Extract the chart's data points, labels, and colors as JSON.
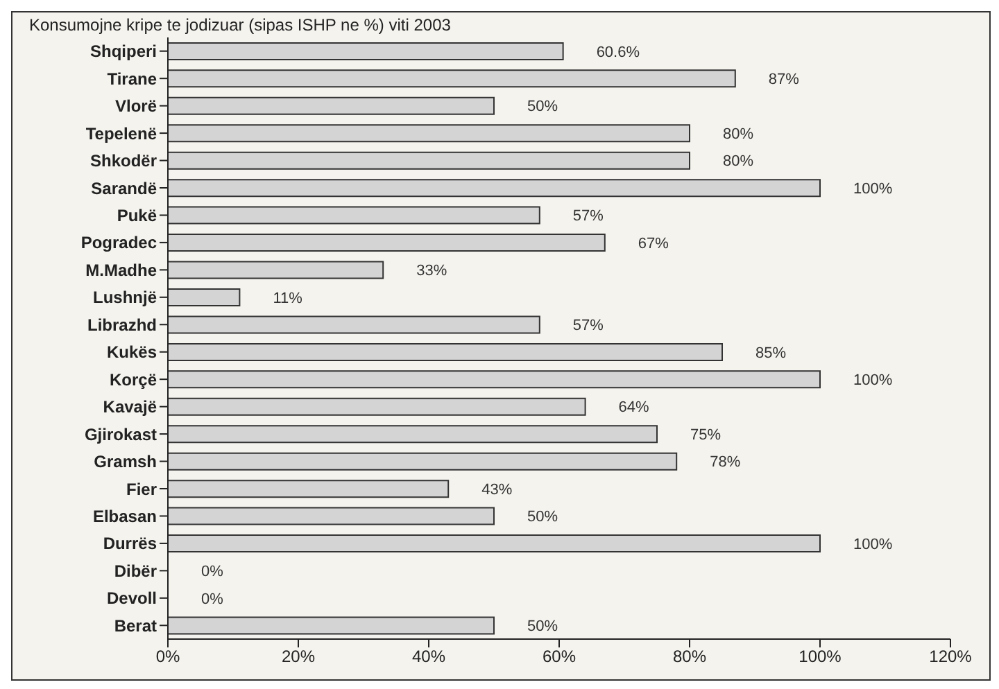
{
  "chart_data": {
    "type": "bar",
    "orientation": "horizontal",
    "title": "Konsumojne kripe te jodizuar (sipas ISHP ne %) viti 2003",
    "categories": [
      "Shqiperi",
      "Tirane",
      "Vlorë",
      "Tepelenë",
      "Shkodër",
      "Sarandë",
      "Pukë",
      "Pogradec",
      "M.Madhe",
      "Lushnjë",
      "Librazhd",
      "Kukës",
      "Korçë",
      "Kavajë",
      "Gjirokast",
      "Gramsh",
      "Fier",
      "Elbasan",
      "Durrës",
      "Dibër",
      "Devoll",
      "Berat"
    ],
    "values": [
      60.6,
      87,
      50,
      80,
      80,
      100,
      57,
      67,
      33,
      11,
      57,
      85,
      100,
      64,
      75,
      78,
      43,
      50,
      100,
      0,
      0,
      50
    ],
    "value_labels": [
      "60.6%",
      "87%",
      "50%",
      "80%",
      "80%",
      "100%",
      "57%",
      "67%",
      "33%",
      "11%",
      "57%",
      "85%",
      "100%",
      "64%",
      "75%",
      "78%",
      "43%",
      "50%",
      "100%",
      "0%",
      "0%",
      "50%"
    ],
    "color": "#d4d4d4",
    "xlim": [
      0,
      120
    ],
    "xticks": [
      {
        "value": 0,
        "label": "0%"
      },
      {
        "value": 20,
        "label": "20%"
      },
      {
        "value": 40,
        "label": "40%"
      },
      {
        "value": 60,
        "label": "60%"
      },
      {
        "value": 80,
        "label": "80%"
      },
      {
        "value": 100,
        "label": "100%"
      },
      {
        "value": 120,
        "label": "120%"
      }
    ],
    "grid": false
  }
}
